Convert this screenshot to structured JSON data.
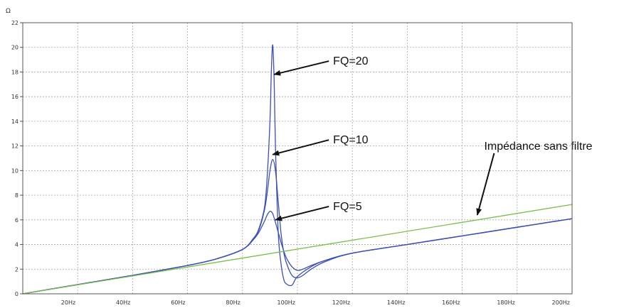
{
  "chart_data": {
    "type": "line",
    "yunit": "Ω",
    "xlim": [
      0,
      200
    ],
    "ylim": [
      0,
      22
    ],
    "x_ticks": [
      {
        "v": 20,
        "label": "20Hz"
      },
      {
        "v": 40,
        "label": "40Hz"
      },
      {
        "v": 60,
        "label": "60Hz"
      },
      {
        "v": 80,
        "label": "80Hz"
      },
      {
        "v": 100,
        "label": "100Hz"
      },
      {
        "v": 120,
        "label": "120Hz"
      },
      {
        "v": 140,
        "label": "140Hz"
      },
      {
        "v": 160,
        "label": "160Hz"
      },
      {
        "v": 180,
        "label": "180Hz"
      },
      {
        "v": 200,
        "label": "200Hz"
      }
    ],
    "y_ticks": [
      {
        "v": 0,
        "label": "0"
      },
      {
        "v": 2,
        "label": "2"
      },
      {
        "v": 4,
        "label": "4"
      },
      {
        "v": 6,
        "label": "6"
      },
      {
        "v": 8,
        "label": "8"
      },
      {
        "v": 10,
        "label": "10"
      },
      {
        "v": 12,
        "label": "12"
      },
      {
        "v": 14,
        "label": "14"
      },
      {
        "v": 16,
        "label": "16"
      },
      {
        "v": 18,
        "label": "18"
      },
      {
        "v": 20,
        "label": "20"
      },
      {
        "v": 22,
        "label": "22"
      }
    ],
    "grid": true,
    "series": [
      {
        "name": "FQ=20",
        "color": "#3c4fb5",
        "x": [
          0,
          20,
          40,
          60,
          70,
          80,
          84,
          86,
          88,
          89,
          90,
          90.5,
          91,
          91.5,
          92,
          93,
          94,
          95,
          96,
          98,
          100,
          105,
          110,
          120,
          140,
          160,
          180,
          200
        ],
        "y": [
          0,
          0.75,
          1.5,
          2.3,
          2.8,
          3.6,
          4.5,
          5.3,
          7.0,
          9.5,
          14.0,
          18.0,
          20.2,
          17.5,
          12.0,
          5.0,
          2.5,
          1.2,
          0.8,
          0.7,
          1.4,
          2.2,
          2.7,
          3.3,
          4.0,
          4.7,
          5.4,
          6.1
        ]
      },
      {
        "name": "FQ=10",
        "color": "#3c4fb5",
        "x": [
          0,
          20,
          40,
          60,
          70,
          80,
          84,
          86,
          88,
          89,
          90,
          91,
          92,
          93,
          94,
          95,
          96,
          98,
          100,
          102,
          105,
          110,
          120,
          140,
          160,
          180,
          200
        ],
        "y": [
          0,
          0.75,
          1.5,
          2.3,
          2.8,
          3.6,
          4.5,
          5.2,
          6.8,
          8.2,
          10.0,
          10.9,
          10.0,
          7.5,
          5.0,
          3.4,
          2.5,
          1.5,
          1.3,
          1.5,
          2.0,
          2.6,
          3.3,
          4.0,
          4.7,
          5.4,
          6.1
        ]
      },
      {
        "name": "FQ=5",
        "color": "#3c4fb5",
        "x": [
          0,
          20,
          40,
          60,
          70,
          80,
          84,
          86,
          88,
          89,
          90,
          91,
          92,
          93,
          94,
          95,
          96,
          98,
          100,
          102,
          105,
          110,
          120,
          140,
          160,
          180,
          200
        ],
        "y": [
          0,
          0.75,
          1.5,
          2.3,
          2.8,
          3.6,
          4.4,
          5.0,
          5.9,
          6.4,
          6.7,
          6.5,
          5.8,
          5.0,
          4.2,
          3.5,
          2.9,
          2.2,
          1.9,
          2.0,
          2.3,
          2.7,
          3.3,
          4.0,
          4.7,
          5.4,
          6.1
        ]
      },
      {
        "name": "Impédance sans filtre",
        "color": "#7bbf4a",
        "x": [
          0,
          200
        ],
        "y": [
          0,
          7.25
        ]
      }
    ],
    "annotations": [
      {
        "text": "FQ=20",
        "tx": 113,
        "ty": 18.6,
        "ax": 91.5,
        "ay": 17.8
      },
      {
        "text": "FQ=10",
        "tx": 113,
        "ty": 12.2,
        "ax": 91,
        "ay": 11.3
      },
      {
        "text": "FQ=5",
        "tx": 113,
        "ty": 6.8,
        "ax": 92,
        "ay": 6.0
      },
      {
        "text": "Impédance sans filtre",
        "tx": 168,
        "ty": 11.7,
        "ax": 165.5,
        "ay": 6.4
      }
    ]
  }
}
